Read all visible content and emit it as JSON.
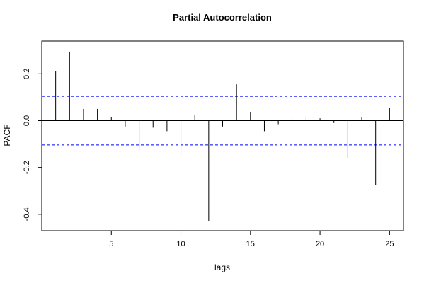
{
  "chart_data": {
    "type": "bar",
    "title": "Partial Autocorrelation",
    "xlabel": "lags",
    "ylabel": "PACF",
    "xlim": [
      0,
      26
    ],
    "ylim": [
      -0.47,
      0.34
    ],
    "grid": false,
    "x": [
      1,
      2,
      3,
      4,
      5,
      6,
      7,
      8,
      9,
      10,
      11,
      12,
      13,
      14,
      15,
      16,
      17,
      18,
      19,
      20,
      21,
      22,
      23,
      24,
      25
    ],
    "values": [
      0.21,
      0.295,
      0.05,
      0.05,
      0.015,
      -0.025,
      -0.125,
      -0.03,
      -0.045,
      -0.145,
      0.025,
      -0.43,
      -0.025,
      0.155,
      0.035,
      -0.045,
      -0.015,
      0.005,
      0.015,
      0.01,
      -0.01,
      -0.16,
      0.015,
      -0.275,
      0.055
    ],
    "confidence_bounds": [
      0.104,
      -0.104
    ],
    "x_ticks": [
      "5",
      "10",
      "15",
      "20",
      "25"
    ],
    "x_tick_values": [
      5,
      10,
      15,
      20,
      25
    ],
    "y_ticks": [
      "-0.4",
      "-0.2",
      "0.0",
      "0.2"
    ],
    "y_tick_values": [
      -0.4,
      -0.2,
      0.0,
      0.2
    ],
    "colors": {
      "bars": "#000000",
      "bounds": "#0000ff",
      "zero_line": "#000000",
      "frame": "#000000"
    }
  }
}
